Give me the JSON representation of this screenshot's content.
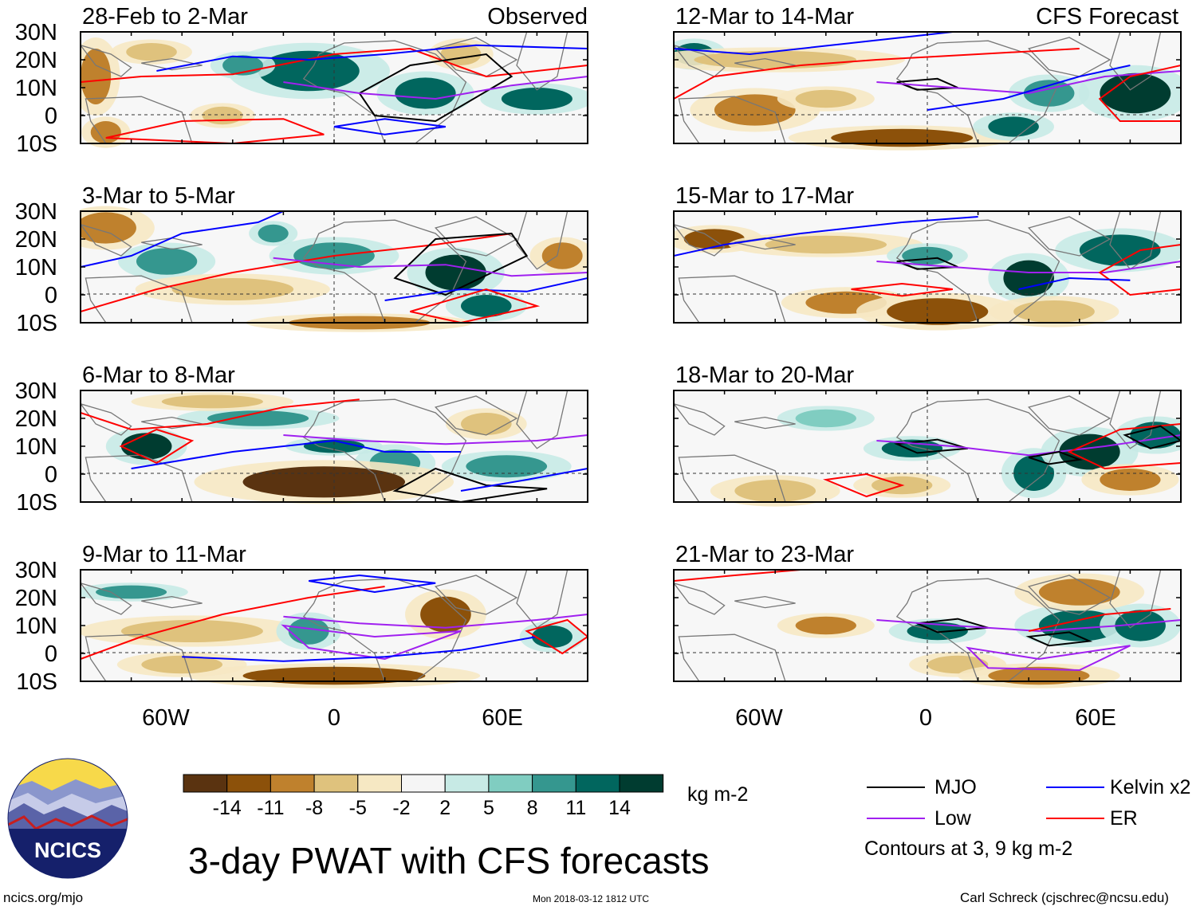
{
  "figure": {
    "title": "3-day PWAT with CFS forecasts",
    "units": "kg m-2",
    "footer_left": "ncics.org/mjo",
    "footer_center": "Mon 2018-03-12 1812 UTC",
    "footer_right": "Carl Schreck (cjschrec@ncsu.edu)",
    "logo_text": "NCICS"
  },
  "columns": {
    "left_label": "Observed",
    "right_label": "CFS Forecast"
  },
  "panels": [
    {
      "period": "28-Feb to 2-Mar"
    },
    {
      "period": "3-Mar to 5-Mar"
    },
    {
      "period": "6-Mar to 8-Mar"
    },
    {
      "period": "9-Mar to 11-Mar"
    },
    {
      "period": "12-Mar to 14-Mar"
    },
    {
      "period": "15-Mar to 17-Mar"
    },
    {
      "period": "18-Mar to 20-Mar"
    },
    {
      "period": "21-Mar to 23-Mar"
    }
  ],
  "axes": {
    "lat_labels": [
      "30N",
      "20N",
      "10N",
      "0",
      "10S"
    ],
    "lon_labels": [
      "60W",
      "0",
      "60E"
    ]
  },
  "colorbar": {
    "labels": [
      "-14",
      "-11",
      "-8",
      "-5",
      "-2",
      "2",
      "5",
      "8",
      "11",
      "14"
    ],
    "colors": [
      "#5a3310",
      "#8c510a",
      "#bf812d",
      "#dfc27d",
      "#f6e8c3",
      "#f5f5f5",
      "#c7eae5",
      "#80cdc1",
      "#35978f",
      "#01665e",
      "#003c30"
    ]
  },
  "legend": {
    "items": [
      {
        "label": "MJO",
        "color": "#000000"
      },
      {
        "label": "Kelvin x2",
        "color": "#0000ff"
      },
      {
        "label": "Low",
        "color": "#a020f0"
      },
      {
        "label": "ER",
        "color": "#ff0000"
      }
    ],
    "note": "Contours at 3, 9 kg m-2"
  }
}
